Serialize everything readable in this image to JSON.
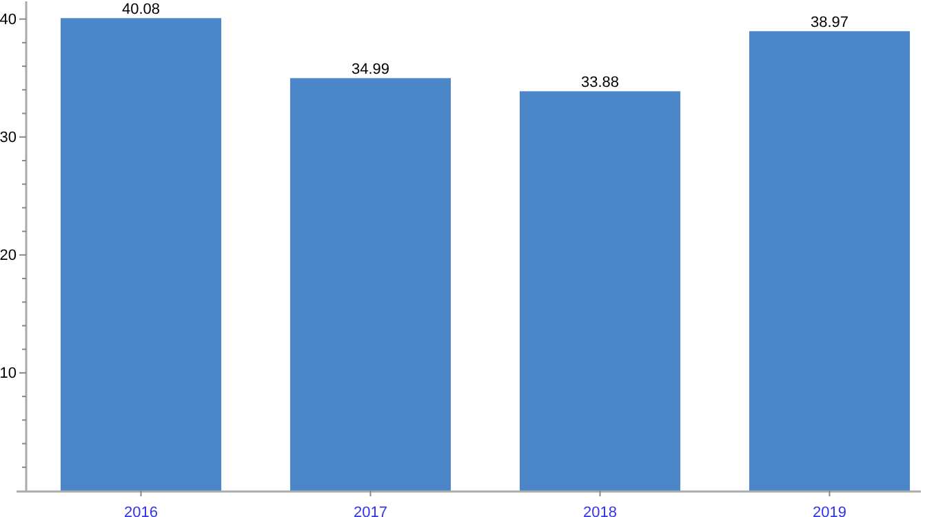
{
  "chart_data": {
    "type": "bar",
    "categories": [
      "2016",
      "2017",
      "2018",
      "2019"
    ],
    "values": [
      40.08,
      34.99,
      33.88,
      38.97
    ],
    "color": "#4a86c8",
    "data_labels": true,
    "ylim": [
      0,
      41.5
    ],
    "yticks": [
      {
        "value": 2,
        "label": null
      },
      {
        "value": 4,
        "label": null
      },
      {
        "value": 6,
        "label": null
      },
      {
        "value": 8,
        "label": null
      },
      10,
      {
        "value": 12,
        "label": null
      },
      {
        "value": 14,
        "label": null
      },
      {
        "value": 16,
        "label": null
      },
      {
        "value": 18,
        "label": null
      },
      20,
      {
        "value": 22,
        "label": null
      },
      {
        "value": 24,
        "label": null
      },
      {
        "value": 26,
        "label": null
      },
      {
        "value": 28,
        "label": null
      },
      30,
      {
        "value": 32,
        "label": null
      },
      {
        "value": 34,
        "label": null
      },
      {
        "value": 36,
        "label": null
      },
      {
        "value": 38,
        "label": null
      },
      40
    ]
  }
}
